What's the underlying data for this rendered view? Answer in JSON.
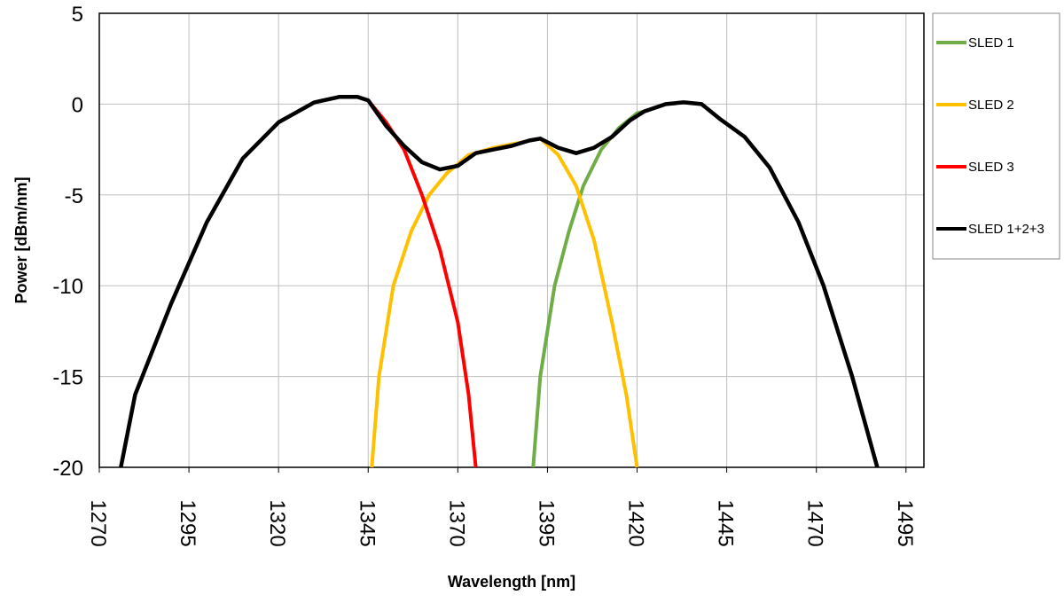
{
  "chart_data": {
    "type": "line",
    "x_label": "Wavelength [nm]",
    "y_label": "Power [dBm/nm]",
    "xlim": [
      1270,
      1500
    ],
    "xticks": [
      1270,
      1295,
      1320,
      1345,
      1370,
      1395,
      1420,
      1445,
      1470,
      1495
    ],
    "ylim": [
      -20,
      5
    ],
    "yticks": [
      -20,
      -15,
      -10,
      -5,
      0,
      5
    ],
    "grid": true,
    "legend": "right",
    "series": [
      {
        "name": "SLED 1",
        "color": "#70ad47",
        "x": [
          1391,
          1393,
          1397,
          1401,
          1405,
          1410,
          1415,
          1420,
          1422,
          1428,
          1433,
          1438,
          1443,
          1450,
          1457,
          1465,
          1472,
          1480,
          1487
        ],
        "values": [
          -20,
          -15,
          -10,
          -7,
          -4.5,
          -2.5,
          -1.3,
          -0.5,
          -0.4,
          0.0,
          0.1,
          0.0,
          -0.8,
          -1.8,
          -3.5,
          -6.5,
          -10,
          -15,
          -20
        ]
      },
      {
        "name": "SLED 2",
        "color": "#ffc000",
        "x": [
          1346,
          1348,
          1352,
          1357,
          1362,
          1367,
          1373,
          1380,
          1388,
          1393,
          1398,
          1403,
          1408,
          1413,
          1417,
          1420
        ],
        "values": [
          -20,
          -15,
          -10,
          -7,
          -5,
          -3.8,
          -2.8,
          -2.4,
          -2.1,
          -1.9,
          -2.8,
          -4.5,
          -7.5,
          -12,
          -16,
          -20
        ]
      },
      {
        "name": "SLED 3",
        "color": "#ff0000",
        "x": [
          1276,
          1280,
          1290,
          1300,
          1310,
          1320,
          1330,
          1337,
          1342,
          1345,
          1350,
          1355,
          1360,
          1365,
          1370,
          1373,
          1375
        ],
        "values": [
          -20,
          -16,
          -11,
          -6.5,
          -3,
          -1,
          0.1,
          0.4,
          0.4,
          0.2,
          -1.0,
          -2.5,
          -5,
          -8,
          -12,
          -16,
          -20
        ]
      },
      {
        "name": "SLED 1+2+3",
        "color": "#000000",
        "x": [
          1276,
          1280,
          1290,
          1300,
          1310,
          1320,
          1330,
          1337,
          1342,
          1345,
          1350,
          1355,
          1360,
          1365,
          1370,
          1375,
          1380,
          1385,
          1390,
          1393,
          1398,
          1403,
          1408,
          1413,
          1418,
          1422,
          1428,
          1433,
          1438,
          1443,
          1450,
          1457,
          1465,
          1472,
          1480,
          1487
        ],
        "values": [
          -20,
          -16,
          -11,
          -6.5,
          -3,
          -1,
          0.1,
          0.4,
          0.4,
          0.2,
          -1.2,
          -2.3,
          -3.2,
          -3.6,
          -3.4,
          -2.7,
          -2.5,
          -2.3,
          -2.0,
          -1.9,
          -2.4,
          -2.7,
          -2.4,
          -1.8,
          -0.9,
          -0.4,
          0.0,
          0.1,
          0.0,
          -0.8,
          -1.8,
          -3.5,
          -6.5,
          -10,
          -15,
          -20
        ]
      }
    ]
  }
}
